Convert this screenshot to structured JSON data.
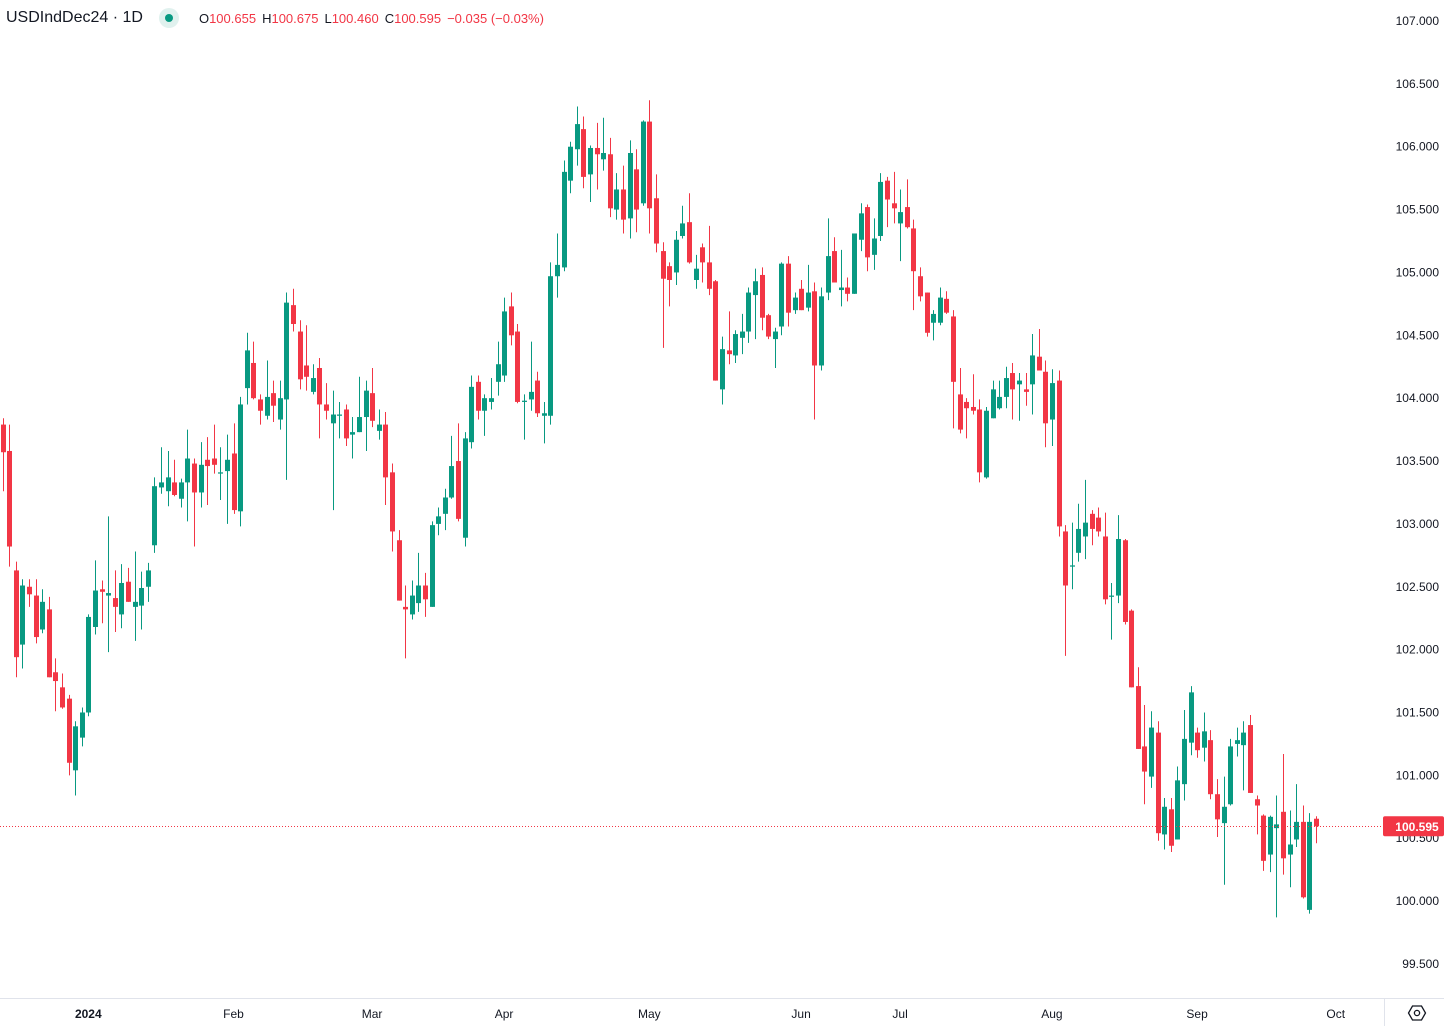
{
  "legend": {
    "symbol": "USDIndDec24 · 1D",
    "open_label": "O",
    "open": "100.655",
    "high_label": "H",
    "high": "100.675",
    "low_label": "L",
    "low": "100.460",
    "close_label": "C",
    "close": "100.595",
    "change": "−0.035 (−0.03%)"
  },
  "colors": {
    "up": "#089981",
    "down": "#F23645",
    "last_price": "#F23645"
  },
  "icons": {
    "settings": "settings-hexagon-icon",
    "status": "market-open-dot-icon"
  },
  "chart_data": {
    "type": "candlestick",
    "title": "USDIndDec24 · 1D",
    "ylim": [
      99.237,
      107.167
    ],
    "y_ticks": [
      "99.500",
      "100.000",
      "100.500",
      "101.000",
      "101.500",
      "102.000",
      "102.500",
      "103.000",
      "103.500",
      "104.000",
      "104.500",
      "105.000",
      "105.500",
      "106.000",
      "106.500",
      "107.000"
    ],
    "x_ticks": [
      {
        "label": "2024",
        "bar": 13
      },
      {
        "label": "Feb",
        "bar": 35
      },
      {
        "label": "Mar",
        "bar": 56
      },
      {
        "label": "Apr",
        "bar": 76
      },
      {
        "label": "May",
        "bar": 98
      },
      {
        "label": "Jun",
        "bar": 121
      },
      {
        "label": "Jul",
        "bar": 136
      },
      {
        "label": "Aug",
        "bar": 159
      },
      {
        "label": "Sep",
        "bar": 181
      },
      {
        "label": "Oct",
        "bar": 202
      }
    ],
    "last_price": "100.595",
    "grid": false,
    "ohlc": [
      [
        103.79,
        103.84,
        103.26,
        103.57
      ],
      [
        103.58,
        103.79,
        102.66,
        102.82
      ],
      [
        102.63,
        102.7,
        101.78,
        101.94
      ],
      [
        102.04,
        102.56,
        101.85,
        102.51
      ],
      [
        102.5,
        102.56,
        102.34,
        102.44
      ],
      [
        102.43,
        102.56,
        102.05,
        102.1
      ],
      [
        102.16,
        102.48,
        102.13,
        102.38
      ],
      [
        102.32,
        102.42,
        101.78,
        101.78
      ],
      [
        101.82,
        101.93,
        101.51,
        101.75
      ],
      [
        101.7,
        101.81,
        101.53,
        101.54
      ],
      [
        101.61,
        101.64,
        101.0,
        101.1
      ],
      [
        101.04,
        101.43,
        100.84,
        101.39
      ],
      [
        101.3,
        101.54,
        101.23,
        101.5
      ],
      [
        101.5,
        102.28,
        101.47,
        102.26
      ],
      [
        102.18,
        102.71,
        102.12,
        102.47
      ],
      [
        102.48,
        102.55,
        102.21,
        102.46
      ],
      [
        102.43,
        103.06,
        101.98,
        102.45
      ],
      [
        102.41,
        102.63,
        102.14,
        102.34
      ],
      [
        102.28,
        102.68,
        102.17,
        102.53
      ],
      [
        102.54,
        102.65,
        102.38,
        102.38
      ],
      [
        102.34,
        102.78,
        102.07,
        102.38
      ],
      [
        102.35,
        102.62,
        102.16,
        102.49
      ],
      [
        102.5,
        102.69,
        102.38,
        102.63
      ],
      [
        102.83,
        103.37,
        102.77,
        103.3
      ],
      [
        103.29,
        103.61,
        103.24,
        103.33
      ],
      [
        103.26,
        103.58,
        103.14,
        103.37
      ],
      [
        103.33,
        103.51,
        103.22,
        103.23
      ],
      [
        103.2,
        103.36,
        103.13,
        103.33
      ],
      [
        103.33,
        103.75,
        103.02,
        103.52
      ],
      [
        103.48,
        103.52,
        102.82,
        103.25
      ],
      [
        103.25,
        103.65,
        103.13,
        103.47
      ],
      [
        103.51,
        103.69,
        103.15,
        103.46
      ],
      [
        103.52,
        103.79,
        103.4,
        103.47
      ],
      [
        103.4,
        103.61,
        103.19,
        103.41
      ],
      [
        103.42,
        103.71,
        103.0,
        103.51
      ],
      [
        103.56,
        103.8,
        103.08,
        103.11
      ],
      [
        103.1,
        104.01,
        102.98,
        103.95
      ],
      [
        104.08,
        104.52,
        103.95,
        104.38
      ],
      [
        104.28,
        104.45,
        103.99,
        104.0
      ],
      [
        103.99,
        104.03,
        103.79,
        103.9
      ],
      [
        103.86,
        104.3,
        103.83,
        104.01
      ],
      [
        104.04,
        104.14,
        103.81,
        103.94
      ],
      [
        103.83,
        104.14,
        103.75,
        104.0
      ],
      [
        103.99,
        104.84,
        103.35,
        104.76
      ],
      [
        104.74,
        104.87,
        104.53,
        104.59
      ],
      [
        104.53,
        104.62,
        104.07,
        104.15
      ],
      [
        104.26,
        104.58,
        104.06,
        104.17
      ],
      [
        104.05,
        104.27,
        104.03,
        104.16
      ],
      [
        104.24,
        104.32,
        103.68,
        103.95
      ],
      [
        103.95,
        104.12,
        103.83,
        103.9
      ],
      [
        103.8,
        104.06,
        103.11,
        103.87
      ],
      [
        103.86,
        103.97,
        103.68,
        103.87
      ],
      [
        103.91,
        103.95,
        103.62,
        103.68
      ],
      [
        103.71,
        103.85,
        103.52,
        103.73
      ],
      [
        103.73,
        104.17,
        103.73,
        103.85
      ],
      [
        103.85,
        104.14,
        103.58,
        104.06
      ],
      [
        104.04,
        104.24,
        103.77,
        103.82
      ],
      [
        103.74,
        103.91,
        103.67,
        103.79
      ],
      [
        103.79,
        103.89,
        103.15,
        103.37
      ],
      [
        103.41,
        103.48,
        102.78,
        102.94
      ],
      [
        102.87,
        102.95,
        102.39,
        102.39
      ],
      [
        102.34,
        102.51,
        101.93,
        102.32
      ],
      [
        102.28,
        102.55,
        102.24,
        102.43
      ],
      [
        102.37,
        102.77,
        102.3,
        102.51
      ],
      [
        102.51,
        102.61,
        102.26,
        102.4
      ],
      [
        102.34,
        103.02,
        102.34,
        102.99
      ],
      [
        103.0,
        103.13,
        102.91,
        103.06
      ],
      [
        103.08,
        103.28,
        102.95,
        103.21
      ],
      [
        103.21,
        103.7,
        103.2,
        103.46
      ],
      [
        103.5,
        103.8,
        103.02,
        103.04
      ],
      [
        102.89,
        103.73,
        102.82,
        103.68
      ],
      [
        103.65,
        104.18,
        103.6,
        104.09
      ],
      [
        104.13,
        104.18,
        103.83,
        103.9
      ],
      [
        103.9,
        104.03,
        103.7,
        104.0
      ],
      [
        103.97,
        104.16,
        103.91,
        104.0
      ],
      [
        104.13,
        104.45,
        104.02,
        104.27
      ],
      [
        104.18,
        104.8,
        104.13,
        104.69
      ],
      [
        104.73,
        104.84,
        104.42,
        104.5
      ],
      [
        104.53,
        104.59,
        103.96,
        103.97
      ],
      [
        103.97,
        104.03,
        103.67,
        103.98
      ],
      [
        103.99,
        104.45,
        103.9,
        104.05
      ],
      [
        104.14,
        104.21,
        103.85,
        103.88
      ],
      [
        103.86,
        103.97,
        103.64,
        103.88
      ],
      [
        103.86,
        105.08,
        103.79,
        104.97
      ],
      [
        104.97,
        105.31,
        104.8,
        105.06
      ],
      [
        105.04,
        105.89,
        105.01,
        105.8
      ],
      [
        105.73,
        106.04,
        105.63,
        106.0
      ],
      [
        105.98,
        106.32,
        105.85,
        106.18
      ],
      [
        106.14,
        106.24,
        105.67,
        105.76
      ],
      [
        105.78,
        106.01,
        105.56,
        105.99
      ],
      [
        105.99,
        106.19,
        105.66,
        105.94
      ],
      [
        105.9,
        106.23,
        105.81,
        105.95
      ],
      [
        105.94,
        106.07,
        105.44,
        105.51
      ],
      [
        105.5,
        105.79,
        105.42,
        105.66
      ],
      [
        105.66,
        105.85,
        105.31,
        105.42
      ],
      [
        105.43,
        106.05,
        105.27,
        105.95
      ],
      [
        105.82,
        105.98,
        105.32,
        105.5
      ],
      [
        105.55,
        106.21,
        105.53,
        106.2
      ],
      [
        106.2,
        106.37,
        105.31,
        105.51
      ],
      [
        105.59,
        105.78,
        105.16,
        105.23
      ],
      [
        105.17,
        105.24,
        104.4,
        104.95
      ],
      [
        105.05,
        105.08,
        104.73,
        104.94
      ],
      [
        105.0,
        105.33,
        104.9,
        105.26
      ],
      [
        105.29,
        105.53,
        105.27,
        105.39
      ],
      [
        105.4,
        105.63,
        105.07,
        105.08
      ],
      [
        104.94,
        105.14,
        104.87,
        105.03
      ],
      [
        105.2,
        105.23,
        104.92,
        105.08
      ],
      [
        105.08,
        105.37,
        104.82,
        104.87
      ],
      [
        104.93,
        104.94,
        104.14,
        104.14
      ],
      [
        104.07,
        104.49,
        103.95,
        104.39
      ],
      [
        104.38,
        104.69,
        104.27,
        104.35
      ],
      [
        104.34,
        104.54,
        104.28,
        104.51
      ],
      [
        104.48,
        104.67,
        104.35,
        104.53
      ],
      [
        104.53,
        104.88,
        104.44,
        104.84
      ],
      [
        104.82,
        105.03,
        104.47,
        104.93
      ],
      [
        104.98,
        105.04,
        104.54,
        104.64
      ],
      [
        104.66,
        104.67,
        104.47,
        104.49
      ],
      [
        104.47,
        104.56,
        104.24,
        104.53
      ],
      [
        104.57,
        105.08,
        104.5,
        105.07
      ],
      [
        105.07,
        105.13,
        104.57,
        104.68
      ],
      [
        104.7,
        104.84,
        104.67,
        104.8
      ],
      [
        104.87,
        104.94,
        104.7,
        104.7
      ],
      [
        104.72,
        105.06,
        104.69,
        104.84
      ],
      [
        104.85,
        104.92,
        103.83,
        104.26
      ],
      [
        104.26,
        104.88,
        104.22,
        104.81
      ],
      [
        104.84,
        105.43,
        104.78,
        105.13
      ],
      [
        105.17,
        105.28,
        104.92,
        104.92
      ],
      [
        104.86,
        105.18,
        104.73,
        104.88
      ],
      [
        104.88,
        104.96,
        104.77,
        104.83
      ],
      [
        104.83,
        105.31,
        104.83,
        105.31
      ],
      [
        105.26,
        105.55,
        105.17,
        105.47
      ],
      [
        105.52,
        105.54,
        105.01,
        105.12
      ],
      [
        105.14,
        105.43,
        105.02,
        105.27
      ],
      [
        105.29,
        105.79,
        105.25,
        105.72
      ],
      [
        105.73,
        105.76,
        105.36,
        105.58
      ],
      [
        105.55,
        105.8,
        105.39,
        105.51
      ],
      [
        105.39,
        105.66,
        105.09,
        105.48
      ],
      [
        105.52,
        105.74,
        105.35,
        105.36
      ],
      [
        105.35,
        105.42,
        104.7,
        105.01
      ],
      [
        104.97,
        105.04,
        104.77,
        104.81
      ],
      [
        104.84,
        104.84,
        104.49,
        104.52
      ],
      [
        104.6,
        104.7,
        104.46,
        104.67
      ],
      [
        104.6,
        104.88,
        104.58,
        104.8
      ],
      [
        104.79,
        104.85,
        104.67,
        104.68
      ],
      [
        104.65,
        104.7,
        103.76,
        104.13
      ],
      [
        104.03,
        104.24,
        103.72,
        103.75
      ],
      [
        103.97,
        104.0,
        103.68,
        103.92
      ],
      [
        103.93,
        104.19,
        103.87,
        103.9
      ],
      [
        103.91,
        103.99,
        103.33,
        103.41
      ],
      [
        103.37,
        103.93,
        103.36,
        103.9
      ],
      [
        103.84,
        104.14,
        103.84,
        104.07
      ],
      [
        103.92,
        104.14,
        103.91,
        104.01
      ],
      [
        104.01,
        104.25,
        103.92,
        104.16
      ],
      [
        104.2,
        104.28,
        103.83,
        104.07
      ],
      [
        104.11,
        104.2,
        103.82,
        104.14
      ],
      [
        104.07,
        104.2,
        103.94,
        104.05
      ],
      [
        104.11,
        104.51,
        103.87,
        104.34
      ],
      [
        104.33,
        104.55,
        104.22,
        104.22
      ],
      [
        104.21,
        104.3,
        103.61,
        103.8
      ],
      [
        103.83,
        104.23,
        103.62,
        104.12
      ],
      [
        104.14,
        104.22,
        102.9,
        102.98
      ],
      [
        102.94,
        102.99,
        101.95,
        102.51
      ],
      [
        102.66,
        103.01,
        102.48,
        102.67
      ],
      [
        102.77,
        103.16,
        102.7,
        102.96
      ],
      [
        102.9,
        103.35,
        102.72,
        103.01
      ],
      [
        103.08,
        103.11,
        102.83,
        102.96
      ],
      [
        103.05,
        103.13,
        102.9,
        102.94
      ],
      [
        102.9,
        103.09,
        102.36,
        102.4
      ],
      [
        102.42,
        102.53,
        102.08,
        102.43
      ],
      [
        102.43,
        103.07,
        102.37,
        102.88
      ],
      [
        102.87,
        102.88,
        102.2,
        102.22
      ],
      [
        102.31,
        102.32,
        101.7,
        101.7
      ],
      [
        101.71,
        101.86,
        101.21,
        101.21
      ],
      [
        101.23,
        101.56,
        100.77,
        101.03
      ],
      [
        100.99,
        101.51,
        100.9,
        101.38
      ],
      [
        101.34,
        101.43,
        100.48,
        100.54
      ],
      [
        100.53,
        100.82,
        100.41,
        100.75
      ],
      [
        100.73,
        100.82,
        100.39,
        100.44
      ],
      [
        100.49,
        101.07,
        100.49,
        100.96
      ],
      [
        100.93,
        101.52,
        100.8,
        101.29
      ],
      [
        101.26,
        101.71,
        101.16,
        101.66
      ],
      [
        101.34,
        101.38,
        101.14,
        101.2
      ],
      [
        101.22,
        101.5,
        101.11,
        101.35
      ],
      [
        101.28,
        101.36,
        100.81,
        100.85
      ],
      [
        100.85,
        100.97,
        100.51,
        100.65
      ],
      [
        100.62,
        100.99,
        100.13,
        100.75
      ],
      [
        100.77,
        101.29,
        100.76,
        101.23
      ],
      [
        101.25,
        101.38,
        101.15,
        101.28
      ],
      [
        101.24,
        101.43,
        100.88,
        101.34
      ],
      [
        101.4,
        101.48,
        100.86,
        100.86
      ],
      [
        100.81,
        100.84,
        100.53,
        100.76
      ],
      [
        100.68,
        100.69,
        100.24,
        100.32
      ],
      [
        100.37,
        100.68,
        100.23,
        100.67
      ],
      [
        100.58,
        100.84,
        99.87,
        100.61
      ],
      [
        100.71,
        101.17,
        100.21,
        100.34
      ],
      [
        100.37,
        100.72,
        100.11,
        100.45
      ],
      [
        100.49,
        100.93,
        100.43,
        100.63
      ],
      [
        100.63,
        100.76,
        100.02,
        100.03
      ],
      [
        99.93,
        100.7,
        99.9,
        100.63
      ],
      [
        100.655,
        100.675,
        100.46,
        100.595
      ]
    ]
  }
}
